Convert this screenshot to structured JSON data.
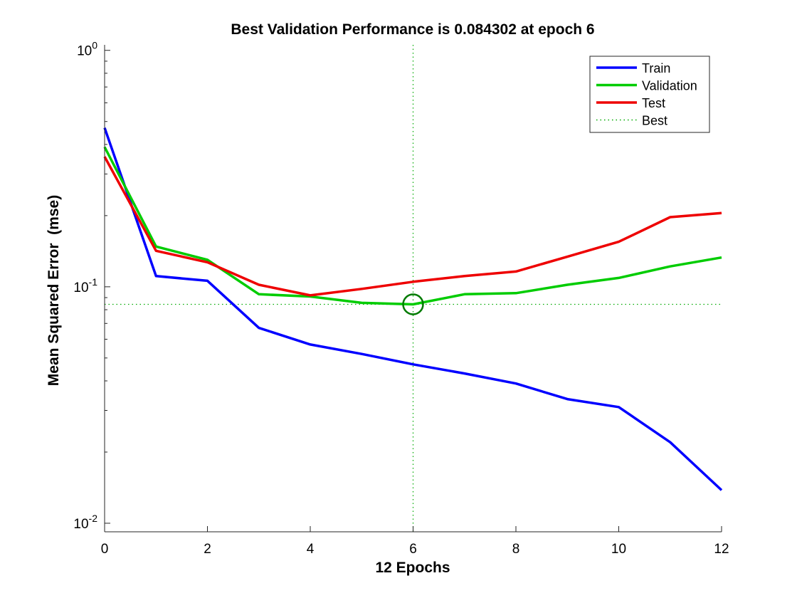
{
  "chart_data": {
    "type": "line",
    "title": "Best Validation Performance is 0.084302 at epoch 6",
    "xlabel": "12 Epochs",
    "ylabel": "Mean Squared Error  (mse)",
    "xlim": [
      0,
      12
    ],
    "ylim": [
      0.01,
      1
    ],
    "yscale": "log",
    "xticks": [
      "0",
      "2",
      "4",
      "6",
      "8",
      "10",
      "12"
    ],
    "yticks": [
      {
        "value": 1,
        "base": "10",
        "exp": "0"
      },
      {
        "value": 0.1,
        "base": "10",
        "exp": "-1"
      },
      {
        "value": 0.01,
        "base": "10",
        "exp": "-2"
      }
    ],
    "grid": false,
    "legend_position": "top-right",
    "series": [
      {
        "name": "Train",
        "color": "#0000ff",
        "style": "solid",
        "x": [
          0,
          1,
          2,
          3,
          4,
          5,
          6,
          7,
          8,
          9,
          10,
          11,
          12
        ],
        "y": [
          0.47,
          0.111,
          0.106,
          0.067,
          0.057,
          0.052,
          0.047,
          0.043,
          0.039,
          0.0335,
          0.031,
          0.022,
          0.0138
        ]
      },
      {
        "name": "Validation",
        "color": "#00cc00",
        "style": "solid",
        "x": [
          0,
          1,
          2,
          3,
          4,
          5,
          6,
          7,
          8,
          9,
          10,
          11,
          12
        ],
        "y": [
          0.39,
          0.148,
          0.13,
          0.093,
          0.091,
          0.0855,
          0.0843,
          0.093,
          0.094,
          0.102,
          0.109,
          0.122,
          0.133
        ]
      },
      {
        "name": "Test",
        "color": "#ee0000",
        "style": "solid",
        "x": [
          0,
          1,
          2,
          3,
          4,
          5,
          6,
          7,
          8,
          9,
          10,
          11,
          12
        ],
        "y": [
          0.355,
          0.142,
          0.127,
          0.102,
          0.092,
          0.098,
          0.105,
          0.111,
          0.116,
          0.134,
          0.155,
          0.197,
          0.205
        ]
      },
      {
        "name": "Best",
        "color": "#00aa00",
        "style": "dotted",
        "type": "reference",
        "x_best": 6,
        "y_best": 0.084302
      }
    ]
  }
}
